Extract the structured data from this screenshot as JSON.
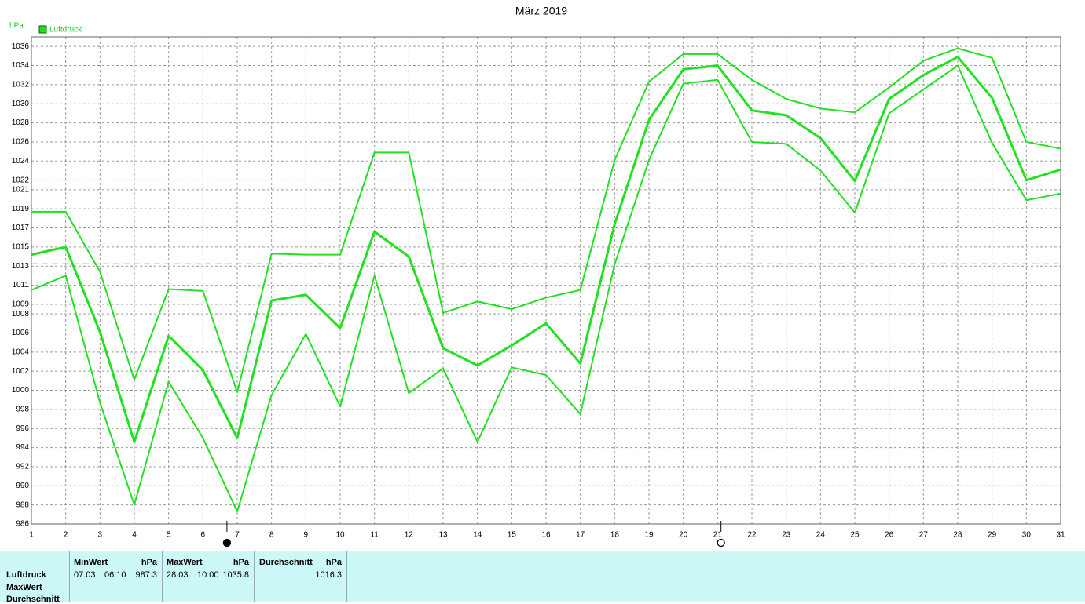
{
  "chart_data": {
    "type": "line",
    "title": "März 2019",
    "y_unit": "hPa",
    "x": [
      1,
      2,
      3,
      4,
      5,
      6,
      7,
      8,
      9,
      10,
      11,
      12,
      13,
      14,
      15,
      16,
      17,
      18,
      19,
      20,
      21,
      22,
      23,
      24,
      25,
      26,
      27,
      28,
      29,
      30,
      31
    ],
    "xlim": [
      1,
      31
    ],
    "xticks": [
      1,
      2,
      3,
      4,
      5,
      6,
      7,
      8,
      9,
      10,
      11,
      12,
      13,
      14,
      15,
      16,
      17,
      18,
      19,
      20,
      21,
      22,
      23,
      24,
      25,
      26,
      27,
      28,
      29,
      30,
      31
    ],
    "ylim": [
      986,
      1037
    ],
    "yticks": [
      986,
      988,
      990,
      992,
      994,
      996,
      998,
      1000,
      1002,
      1004,
      1006,
      1008,
      1009,
      1011,
      1013,
      1015,
      1017,
      1019,
      1021,
      1022,
      1024,
      1026,
      1028,
      1030,
      1032,
      1034,
      1036
    ],
    "grid": true,
    "reference_line": 1013.25,
    "series": [
      {
        "name": "Luftdruck",
        "color": "#22e022",
        "width": 3,
        "values": [
          1014.2,
          1015.0,
          1006.1,
          994.6,
          1005.7,
          1002.1,
          995.0,
          1009.4,
          1010.0,
          1006.5,
          1016.6,
          1014.0,
          1004.4,
          1002.6,
          1004.7,
          1007.0,
          1002.8,
          1017.4,
          1028.3,
          1033.6,
          1034.0,
          1029.3,
          1028.8,
          1026.4,
          1021.9,
          1030.5,
          1033.0,
          1034.9,
          1030.6,
          1022.0,
          1023.1
        ]
      },
      {
        "color": "#22e022",
        "width": 2,
        "values": [
          1018.7,
          1018.7,
          1012.4,
          1001.1,
          1010.6,
          1010.4,
          999.8,
          1014.3,
          1014.2,
          1014.2,
          1024.9,
          1024.9,
          1008.1,
          1009.3,
          1008.5,
          1009.7,
          1010.5,
          1024.1,
          1032.3,
          1035.2,
          1035.2,
          1032.5,
          1030.5,
          1029.5,
          1029.1,
          1031.7,
          1034.5,
          1035.8,
          1034.8,
          1026.0,
          1025.3
        ]
      },
      {
        "color": "#22e022",
        "width": 2,
        "values": [
          1010.5,
          1012.0,
          998.7,
          988.0,
          1000.9,
          995.0,
          987.3,
          999.5,
          1005.9,
          998.3,
          1012.0,
          999.7,
          1002.3,
          994.6,
          1002.4,
          1001.6,
          997.5,
          1013.2,
          1024.1,
          1032.1,
          1032.5,
          1026.0,
          1025.8,
          1023.0,
          1018.6,
          1029.0,
          1031.5,
          1034.0,
          1025.9,
          1019.9,
          1020.6
        ]
      }
    ],
    "moon_phases": [
      {
        "x": 6.7,
        "filled": true
      },
      {
        "x": 21.1,
        "filled": false
      }
    ]
  },
  "table": {
    "row_labels": [
      "Luftdruck",
      "MaxWert",
      "Durchschnitt"
    ],
    "columns": [
      {
        "header": "MinWert",
        "unit": "hPa",
        "date": "07.03.",
        "time": "06:10",
        "value": 987.3
      },
      {
        "header": "MaxWert",
        "unit": "hPa",
        "date": "28.03.",
        "time": "10:00",
        "value": 1035.8
      },
      {
        "header": "Durchschnitt",
        "unit": "hPa",
        "value": 1016.3
      }
    ]
  }
}
